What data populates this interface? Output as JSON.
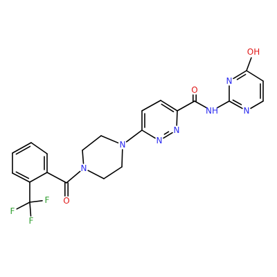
{
  "molecule": {
    "colors": {
      "bond": "#000000",
      "N": "#2a2af0",
      "O": "#e01818",
      "F": "#2e9e2e"
    },
    "atoms": [
      {
        "id": "a_oh",
        "element": "O",
        "label": "OH"
      },
      {
        "id": "a_pm_c4"
      },
      {
        "id": "a_pm_c5"
      },
      {
        "id": "a_pm_c6"
      },
      {
        "id": "a_pm_n1",
        "element": "N",
        "label": "N"
      },
      {
        "id": "a_pm_c2"
      },
      {
        "id": "a_pm_n3",
        "element": "N",
        "label": "N"
      },
      {
        "id": "a_nh",
        "element": "N",
        "label": "NH"
      },
      {
        "id": "a_amide_c"
      },
      {
        "id": "a_amide_o",
        "element": "O",
        "label": "O"
      },
      {
        "id": "a_pz_c3"
      },
      {
        "id": "a_pz_c4"
      },
      {
        "id": "a_pz_c5"
      },
      {
        "id": "a_pz_c6"
      },
      {
        "id": "a_pz_n1",
        "element": "N",
        "label": "N"
      },
      {
        "id": "a_pz_n2",
        "element": "N",
        "label": "N"
      },
      {
        "id": "a_pip_n4",
        "element": "N",
        "label": "N"
      },
      {
        "id": "a_pip_c1"
      },
      {
        "id": "a_pip_c2"
      },
      {
        "id": "a_pip_n1",
        "element": "N",
        "label": "N"
      },
      {
        "id": "a_pip_c3"
      },
      {
        "id": "a_pip_c4"
      },
      {
        "id": "a_co_c"
      },
      {
        "id": "a_co_o",
        "element": "O",
        "label": "O"
      },
      {
        "id": "a_ph_c1"
      },
      {
        "id": "a_ph_c2"
      },
      {
        "id": "a_ph_c3"
      },
      {
        "id": "a_ph_c4"
      },
      {
        "id": "a_ph_c5"
      },
      {
        "id": "a_ph_c6"
      },
      {
        "id": "a_cf3_c"
      },
      {
        "id": "a_f1",
        "element": "F",
        "label": "F"
      },
      {
        "id": "a_f2",
        "element": "F",
        "label": "F"
      },
      {
        "id": "a_f3",
        "element": "F",
        "label": "F"
      }
    ],
    "bonds": [
      {
        "a": "a_oh",
        "b": "a_pm_c4",
        "order": 1
      },
      {
        "a": "a_pm_c4",
        "b": "a_pm_c5",
        "order": 1
      },
      {
        "a": "a_pm_c5",
        "b": "a_pm_c6",
        "order": 2
      },
      {
        "a": "a_pm_c6",
        "b": "a_pm_n1",
        "order": 1
      },
      {
        "a": "a_pm_n1",
        "b": "a_pm_c2",
        "order": 2
      },
      {
        "a": "a_pm_c2",
        "b": "a_pm_n3",
        "order": 1
      },
      {
        "a": "a_pm_n3",
        "b": "a_pm_c4",
        "order": 2
      },
      {
        "a": "a_pm_c2",
        "b": "a_nh",
        "order": 1
      },
      {
        "a": "a_nh",
        "b": "a_amide_c",
        "order": 1
      },
      {
        "a": "a_amide_c",
        "b": "a_amide_o",
        "order": 2
      },
      {
        "a": "a_amide_c",
        "b": "a_pz_c3",
        "order": 1
      },
      {
        "a": "a_pz_c3",
        "b": "a_pz_c4",
        "order": 2
      },
      {
        "a": "a_pz_c4",
        "b": "a_pz_c5",
        "order": 1
      },
      {
        "a": "a_pz_c5",
        "b": "a_pz_c6",
        "order": 2
      },
      {
        "a": "a_pz_c6",
        "b": "a_pz_n1",
        "order": 1
      },
      {
        "a": "a_pz_n1",
        "b": "a_pz_n2",
        "order": 2
      },
      {
        "a": "a_pz_n2",
        "b": "a_pz_c3",
        "order": 1
      },
      {
        "a": "a_pz_c6",
        "b": "a_pip_n4",
        "order": 1
      },
      {
        "a": "a_pip_n4",
        "b": "a_pip_c1",
        "order": 1
      },
      {
        "a": "a_pip_c1",
        "b": "a_pip_c2",
        "order": 1
      },
      {
        "a": "a_pip_c2",
        "b": "a_pip_n1",
        "order": 1
      },
      {
        "a": "a_pip_n1",
        "b": "a_pip_c3",
        "order": 1
      },
      {
        "a": "a_pip_c3",
        "b": "a_pip_c4",
        "order": 1
      },
      {
        "a": "a_pip_c4",
        "b": "a_pip_n4",
        "order": 1
      },
      {
        "a": "a_pip_n1",
        "b": "a_co_c",
        "order": 1
      },
      {
        "a": "a_co_c",
        "b": "a_co_o",
        "order": 2
      },
      {
        "a": "a_co_c",
        "b": "a_ph_c1",
        "order": 1
      },
      {
        "a": "a_ph_c1",
        "b": "a_ph_c2",
        "order": 2
      },
      {
        "a": "a_ph_c2",
        "b": "a_ph_c3",
        "order": 1
      },
      {
        "a": "a_ph_c3",
        "b": "a_ph_c4",
        "order": 2
      },
      {
        "a": "a_ph_c4",
        "b": "a_ph_c5",
        "order": 1
      },
      {
        "a": "a_ph_c5",
        "b": "a_ph_c6",
        "order": 2
      },
      {
        "a": "a_ph_c6",
        "b": "a_ph_c1",
        "order": 1
      },
      {
        "a": "a_ph_c6",
        "b": "a_cf3_c",
        "order": 1
      },
      {
        "a": "a_cf3_c",
        "b": "a_f1",
        "order": 1
      },
      {
        "a": "a_cf3_c",
        "b": "a_f2",
        "order": 1
      },
      {
        "a": "a_cf3_c",
        "b": "a_f3",
        "order": 1
      }
    ]
  }
}
